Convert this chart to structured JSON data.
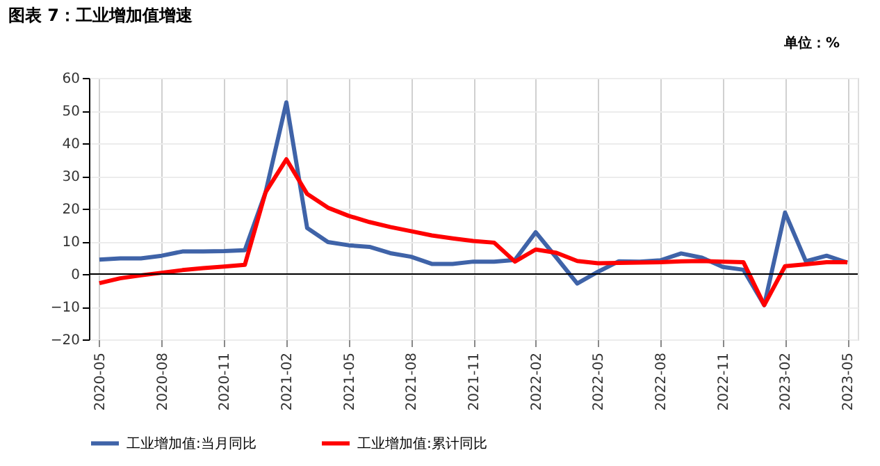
{
  "chart_data": {
    "type": "line",
    "title": "图表 7：工业增加值增速",
    "ylabel": "单位：%",
    "categories": [
      "2020-05",
      null,
      null,
      "2020-08",
      null,
      null,
      "2020-11",
      null,
      null,
      "2021-02",
      null,
      null,
      "2021-05",
      null,
      null,
      "2021-08",
      null,
      null,
      "2021-11",
      null,
      null,
      "2022-02",
      null,
      null,
      "2022-05",
      null,
      null,
      "2022-08",
      null,
      null,
      "2022-11",
      null,
      null,
      "2023-02",
      null,
      null,
      "2023-05"
    ],
    "series": [
      {
        "name": "工业增加值:当月同比",
        "color": "#3f63a8",
        "values": [
          4.4,
          4.8,
          4.8,
          5.6,
          6.9,
          6.9,
          7.0,
          7.3,
          25,
          52.5,
          14.1,
          9.8,
          8.8,
          8.3,
          6.4,
          5.3,
          3.1,
          3.1,
          3.8,
          3.8,
          4.3,
          12.8,
          5.0,
          -2.9,
          0.7,
          3.9,
          3.8,
          4.2,
          6.3,
          5.0,
          2.2,
          1.3,
          -9.5,
          18.8,
          3.9,
          5.6,
          3.5
        ]
      },
      {
        "name": "工业增加值:累计同比",
        "color": "#ff0000",
        "values": [
          -2.8,
          -1.3,
          -0.4,
          0.4,
          1.2,
          1.8,
          2.3,
          2.8,
          25,
          35.1,
          24.5,
          20.3,
          17.8,
          15.9,
          14.4,
          13.1,
          11.8,
          10.9,
          10.1,
          9.6,
          3.8,
          7.5,
          6.5,
          4.0,
          3.3,
          3.4,
          3.5,
          3.6,
          3.9,
          4.0,
          3.8,
          3.6,
          -9.5,
          2.4,
          3.0,
          3.6,
          3.6
        ]
      }
    ],
    "ylim": [
      -20,
      60
    ],
    "yticks": [
      -20,
      -10,
      0,
      10,
      20,
      30,
      40,
      50,
      60
    ],
    "grid": true,
    "legend": "bottom",
    "line_style": "solid",
    "marker": "none"
  }
}
